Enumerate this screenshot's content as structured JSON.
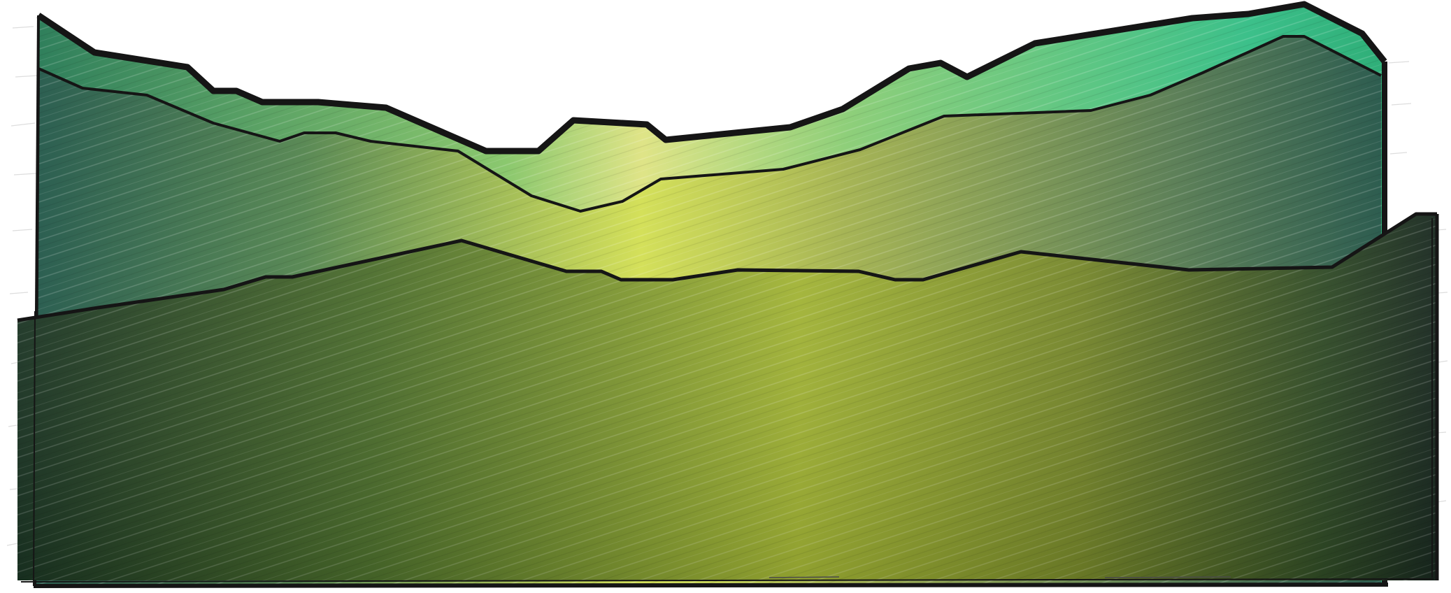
{
  "illustration": {
    "subject": "mountain-ridges-landscape",
    "style": "sketch-hatched-vector",
    "layers": [
      {
        "name": "back-ridge",
        "color_light": "#39b57a",
        "color_dark": "#2d8f60"
      },
      {
        "name": "middle-ridge",
        "color_light": "#d9e35a",
        "color_dark": "#2a5a4a"
      },
      {
        "name": "front-ridge",
        "color_light": "#a2b636",
        "color_dark": "#152a1f"
      }
    ],
    "outline_color": "#151515",
    "background_color": "#ffffff"
  }
}
